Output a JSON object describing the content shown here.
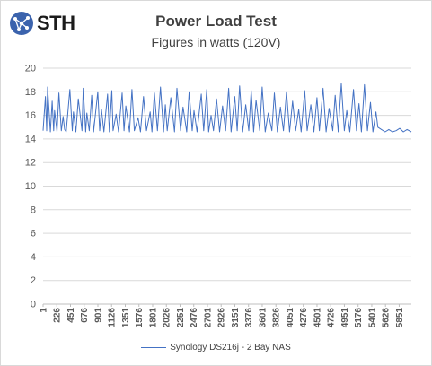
{
  "logo": {
    "text": "STH",
    "icon": "globe-network-icon"
  },
  "chart_data": {
    "type": "line",
    "title": "Power Load Test",
    "subtitle": "Figures in watts (120V)",
    "xlabel": "",
    "ylabel": "",
    "ylim": [
      0,
      20
    ],
    "yticks": [
      "0",
      "2",
      "4",
      "6",
      "8",
      "10",
      "12",
      "14",
      "16",
      "18",
      "20"
    ],
    "xlim": [
      1,
      6051
    ],
    "xticks": [
      "1",
      "226",
      "451",
      "676",
      "901",
      "1126",
      "1351",
      "1576",
      "1801",
      "2026",
      "2251",
      "2476",
      "2701",
      "2926",
      "3151",
      "3376",
      "3601",
      "3826",
      "4051",
      "4276",
      "4501",
      "4726",
      "4951",
      "5176",
      "5401",
      "5626",
      "5851"
    ],
    "grid": "horizontal",
    "legend_position": "bottom",
    "colors": {
      "series": "#4472c4",
      "grid": "#d9d9d9",
      "text": "#595959"
    },
    "series": [
      {
        "name": "Synology DS216j - 2 Bay NAS",
        "x": [
          1,
          40,
          60,
          75,
          120,
          150,
          175,
          190,
          230,
          260,
          300,
          330,
          355,
          380,
          440,
          480,
          500,
          540,
          580,
          640,
          660,
          700,
          720,
          760,
          800,
          830,
          900,
          930,
          960,
          1000,
          1060,
          1090,
          1130,
          1150,
          1200,
          1240,
          1300,
          1330,
          1360,
          1420,
          1460,
          1500,
          1560,
          1600,
          1650,
          1700,
          1760,
          1790,
          1830,
          1880,
          1930,
          1980,
          2010,
          2040,
          2100,
          2160,
          2200,
          2260,
          2300,
          2360,
          2400,
          2450,
          2480,
          2530,
          2600,
          2640,
          2690,
          2720,
          2760,
          2800,
          2850,
          2900,
          2950,
          3000,
          3050,
          3090,
          3150,
          3190,
          3230,
          3280,
          3330,
          3380,
          3420,
          3460,
          3500,
          3560,
          3600,
          3650,
          3700,
          3760,
          3800,
          3850,
          3900,
          3950,
          4000,
          4050,
          4100,
          4150,
          4200,
          4240,
          4300,
          4340,
          4400,
          4450,
          4500,
          4540,
          4600,
          4650,
          4700,
          4760,
          4800,
          4850,
          4900,
          4950,
          4990,
          5040,
          5100,
          5150,
          5190,
          5230,
          5280,
          5330,
          5380,
          5420,
          5470,
          5500,
          5560,
          5620,
          5680,
          5740,
          5800,
          5860,
          5920,
          5980,
          6051
        ],
        "values": [
          14.7,
          17.6,
          14.7,
          18.4,
          14.6,
          17.2,
          14.7,
          16.4,
          14.6,
          17.9,
          14.7,
          15.9,
          14.8,
          14.6,
          18.2,
          14.7,
          16.3,
          14.6,
          17.4,
          14.7,
          18.3,
          14.6,
          16.2,
          14.7,
          17.7,
          14.6,
          18.0,
          14.7,
          16.5,
          14.6,
          17.8,
          14.6,
          18.1,
          14.7,
          16.1,
          14.6,
          17.9,
          14.7,
          16.8,
          14.6,
          18.2,
          14.7,
          15.8,
          14.6,
          17.6,
          14.7,
          16.3,
          14.6,
          17.9,
          14.7,
          18.4,
          14.6,
          16.9,
          14.7,
          17.5,
          14.6,
          18.3,
          14.7,
          16.7,
          14.6,
          18.0,
          14.7,
          16.4,
          14.6,
          17.8,
          14.7,
          18.2,
          14.6,
          16.0,
          14.7,
          17.4,
          14.6,
          16.8,
          14.7,
          18.3,
          14.6,
          17.6,
          14.7,
          18.5,
          14.6,
          16.9,
          14.7,
          18.1,
          14.6,
          17.3,
          14.7,
          18.4,
          14.6,
          16.2,
          14.7,
          17.9,
          14.6,
          16.7,
          14.7,
          18.0,
          14.6,
          17.2,
          14.7,
          16.5,
          14.6,
          18.1,
          14.7,
          16.9,
          14.6,
          17.5,
          14.7,
          18.3,
          14.6,
          16.6,
          14.7,
          17.7,
          14.6,
          18.7,
          14.7,
          16.4,
          14.6,
          18.2,
          14.7,
          17.0,
          14.6,
          18.6,
          14.7,
          17.1,
          14.6,
          16.3,
          15.0,
          14.8,
          14.6,
          14.8,
          14.6,
          14.7,
          14.9,
          14.6,
          14.8,
          14.6
        ]
      }
    ]
  }
}
